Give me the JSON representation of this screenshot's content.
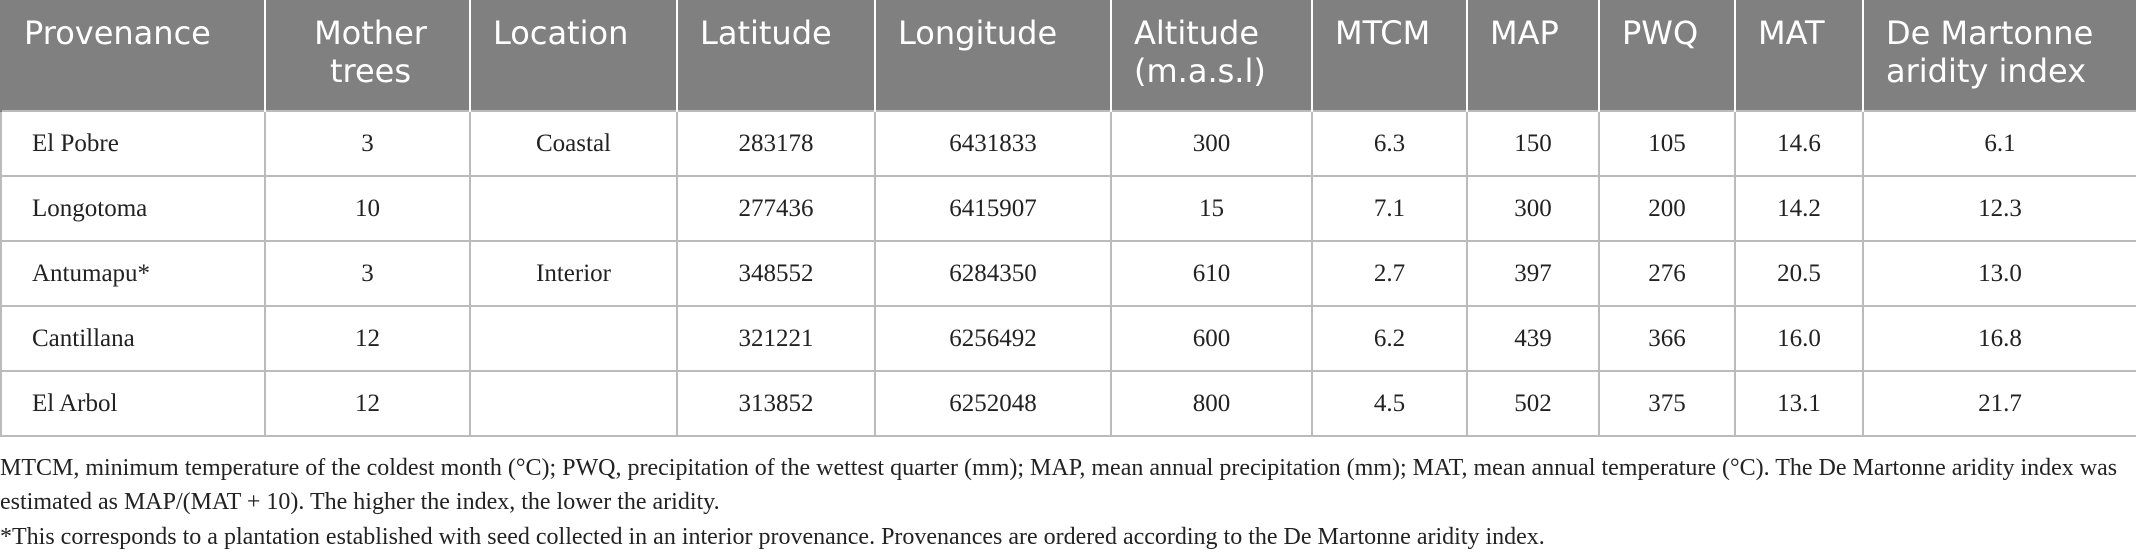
{
  "table": {
    "header": [
      "Provenance",
      "Mother trees",
      "Location",
      "Latitude",
      "Longitude",
      "Altitude (m.a.s.l)",
      "MTCM",
      "MAP",
      "PWQ",
      "MAT",
      "De Martonne aridity index"
    ],
    "rows": [
      [
        "El Pobre",
        "3",
        "Coastal",
        "283178",
        "6431833",
        "300",
        "6.3",
        "150",
        "105",
        "14.6",
        "6.1"
      ],
      [
        "Longotoma",
        "10",
        null,
        "277436",
        "6415907",
        "15",
        "7.1",
        "300",
        "200",
        "14.2",
        "12.3"
      ],
      [
        "Antumapu*",
        "3",
        "Interior",
        "348552",
        "6284350",
        "610",
        "2.7",
        "397",
        "276",
        "20.5",
        "13.0"
      ],
      [
        "Cantillana",
        "12",
        null,
        "321221",
        "6256492",
        "600",
        "6.2",
        "439",
        "366",
        "16.0",
        "16.8"
      ],
      [
        "El Arbol",
        "12",
        null,
        "313852",
        "6252048",
        "800",
        "4.5",
        "502",
        "375",
        "13.1",
        "21.7"
      ]
    ]
  },
  "notes": [
    "MTCM, minimum temperature of the coldest month (°C); PWQ, precipitation of the wettest quarter (mm); MAP, mean annual precipitation (mm); MAT, mean annual temperature (°C). The De Martonne aridity index was estimated as MAP/(MAT + 10). The higher the index, the lower the aridity.",
    "*This corresponds to a plantation established with seed collected in an interior provenance. Provenances are ordered according to the De Martonne aridity index."
  ]
}
